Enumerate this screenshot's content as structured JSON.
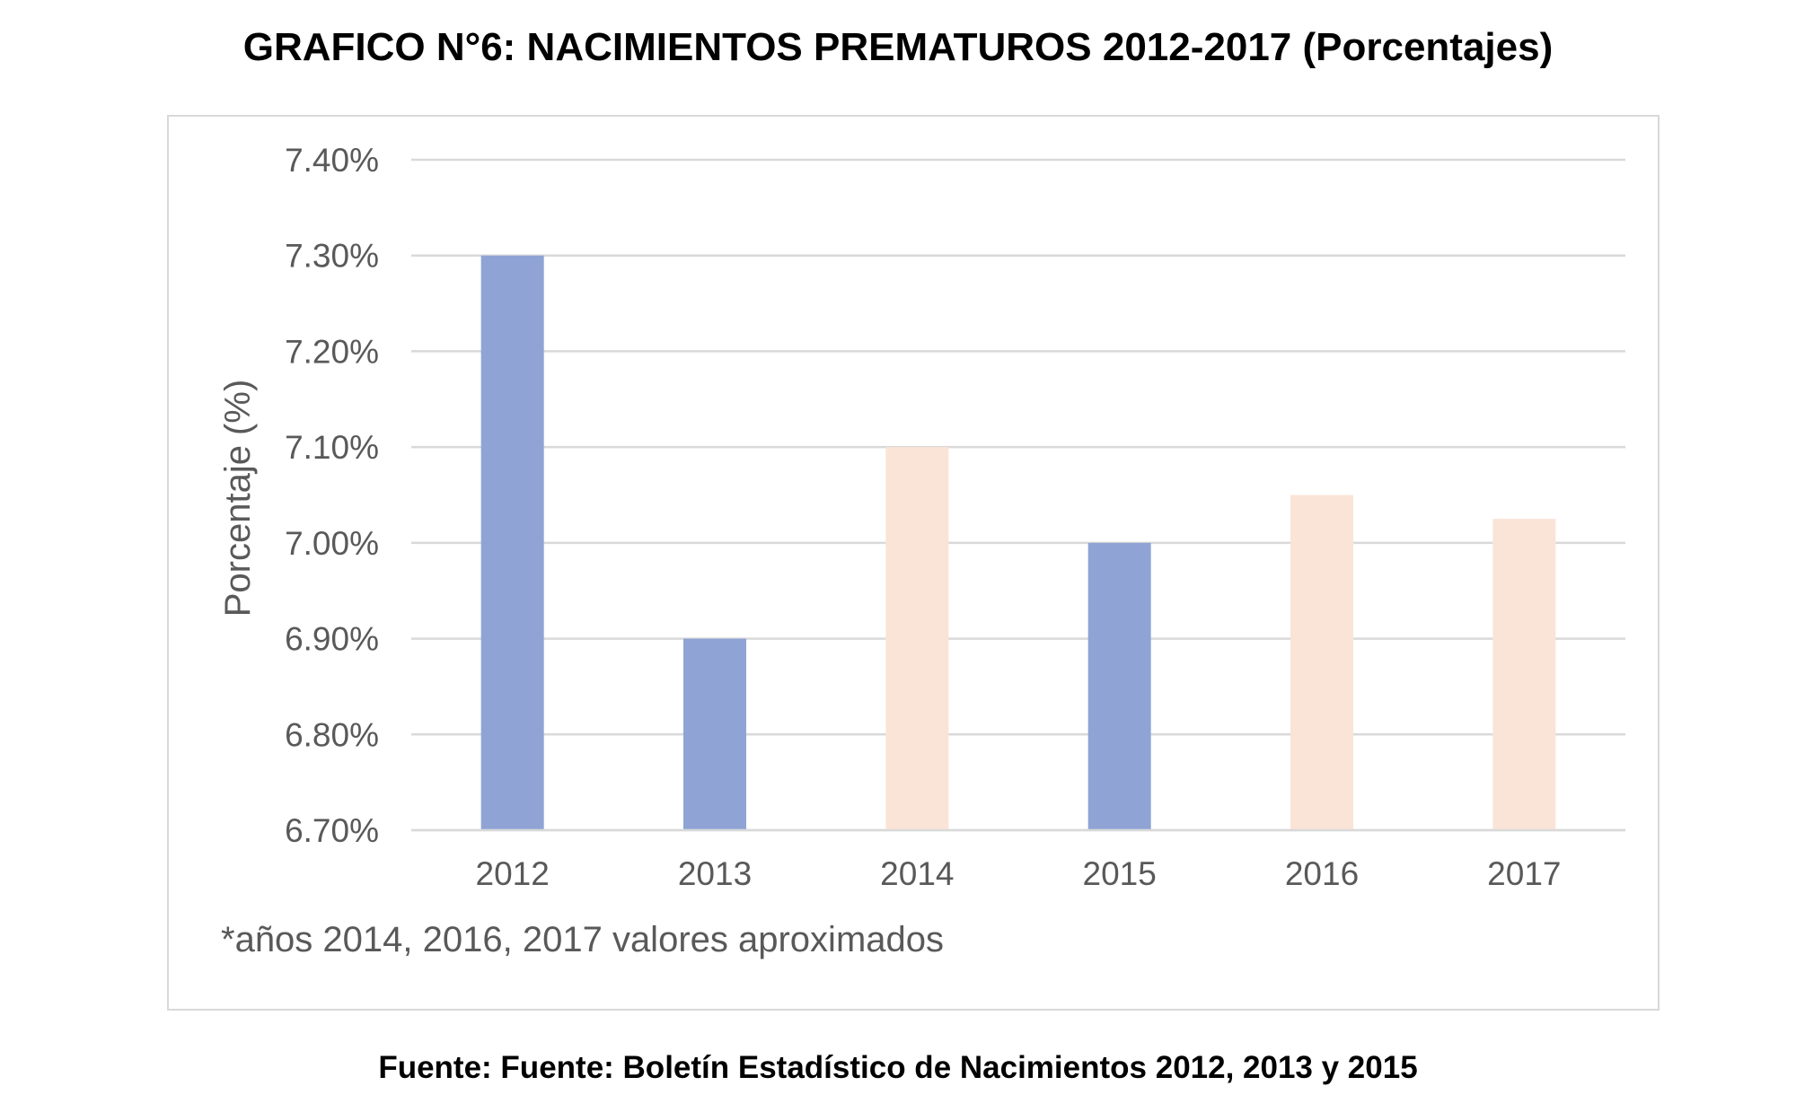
{
  "title": "GRAFICO N°6: NACIMIENTOS PREMATUROS 2012-2017 (Porcentajes)",
  "source": "Fuente: Fuente: Boletín Estadístico de Nacimientos 2012, 2013 y 2015",
  "chart_data": {
    "type": "bar",
    "title": "GRAFICO N°6: NACIMIENTOS PREMATUROS 2012-2017 (Porcentajes)",
    "xlabel": "",
    "ylabel": "Porcentaje (%)",
    "categories": [
      "2012",
      "2013",
      "2014",
      "2015",
      "2016",
      "2017"
    ],
    "values": [
      7.3,
      6.9,
      7.1,
      7.0,
      7.05,
      7.025
    ],
    "approximate": [
      false,
      false,
      true,
      false,
      true,
      true
    ],
    "ylim": [
      6.7,
      7.4
    ],
    "yticks": [
      6.7,
      6.8,
      6.9,
      7.0,
      7.1,
      7.2,
      7.3,
      7.4
    ],
    "ytick_labels": [
      "6.70%",
      "6.80%",
      "6.90%",
      "7.00%",
      "7.10%",
      "7.20%",
      "7.30%",
      "7.40%"
    ],
    "grid": true,
    "legend": "none",
    "colors": {
      "reported": "#8fa4d4",
      "approximate": "#fae4d7",
      "grid": "#d9d9d9",
      "axis_text": "#595959"
    },
    "note": "*años 2014, 2016, 2017 valores aproximados"
  }
}
